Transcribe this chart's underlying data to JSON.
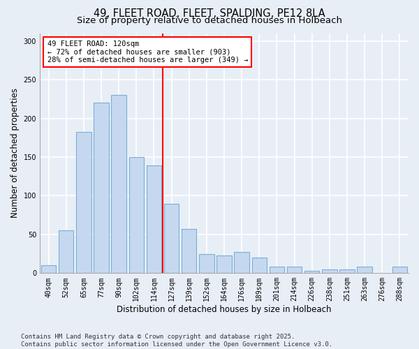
{
  "title": "49, FLEET ROAD, FLEET, SPALDING, PE12 8LA",
  "subtitle": "Size of property relative to detached houses in Holbeach",
  "xlabel": "Distribution of detached houses by size in Holbeach",
  "ylabel": "Number of detached properties",
  "categories": [
    "40sqm",
    "52sqm",
    "65sqm",
    "77sqm",
    "90sqm",
    "102sqm",
    "114sqm",
    "127sqm",
    "139sqm",
    "152sqm",
    "164sqm",
    "176sqm",
    "189sqm",
    "201sqm",
    "214sqm",
    "226sqm",
    "238sqm",
    "251sqm",
    "263sqm",
    "276sqm",
    "288sqm"
  ],
  "values": [
    10,
    55,
    182,
    220,
    230,
    150,
    139,
    90,
    57,
    25,
    23,
    27,
    20,
    8,
    8,
    3,
    5,
    5,
    8,
    0,
    8
  ],
  "bar_color": "#c5d8f0",
  "bar_edge_color": "#7aafd4",
  "vline_x": 6.5,
  "vline_color": "red",
  "annotation_text": "49 FLEET ROAD: 120sqm\n← 72% of detached houses are smaller (903)\n28% of semi-detached houses are larger (349) →",
  "annotation_box_color": "white",
  "annotation_box_edge_color": "red",
  "ylim": [
    0,
    310
  ],
  "yticks": [
    0,
    50,
    100,
    150,
    200,
    250,
    300
  ],
  "background_color": "#e8eef6",
  "grid_color": "white",
  "footer_text": "Contains HM Land Registry data © Crown copyright and database right 2025.\nContains public sector information licensed under the Open Government Licence v3.0.",
  "title_fontsize": 10.5,
  "subtitle_fontsize": 9.5,
  "xlabel_fontsize": 8.5,
  "ylabel_fontsize": 8.5,
  "tick_fontsize": 7,
  "annotation_fontsize": 7.5,
  "footer_fontsize": 6.5
}
